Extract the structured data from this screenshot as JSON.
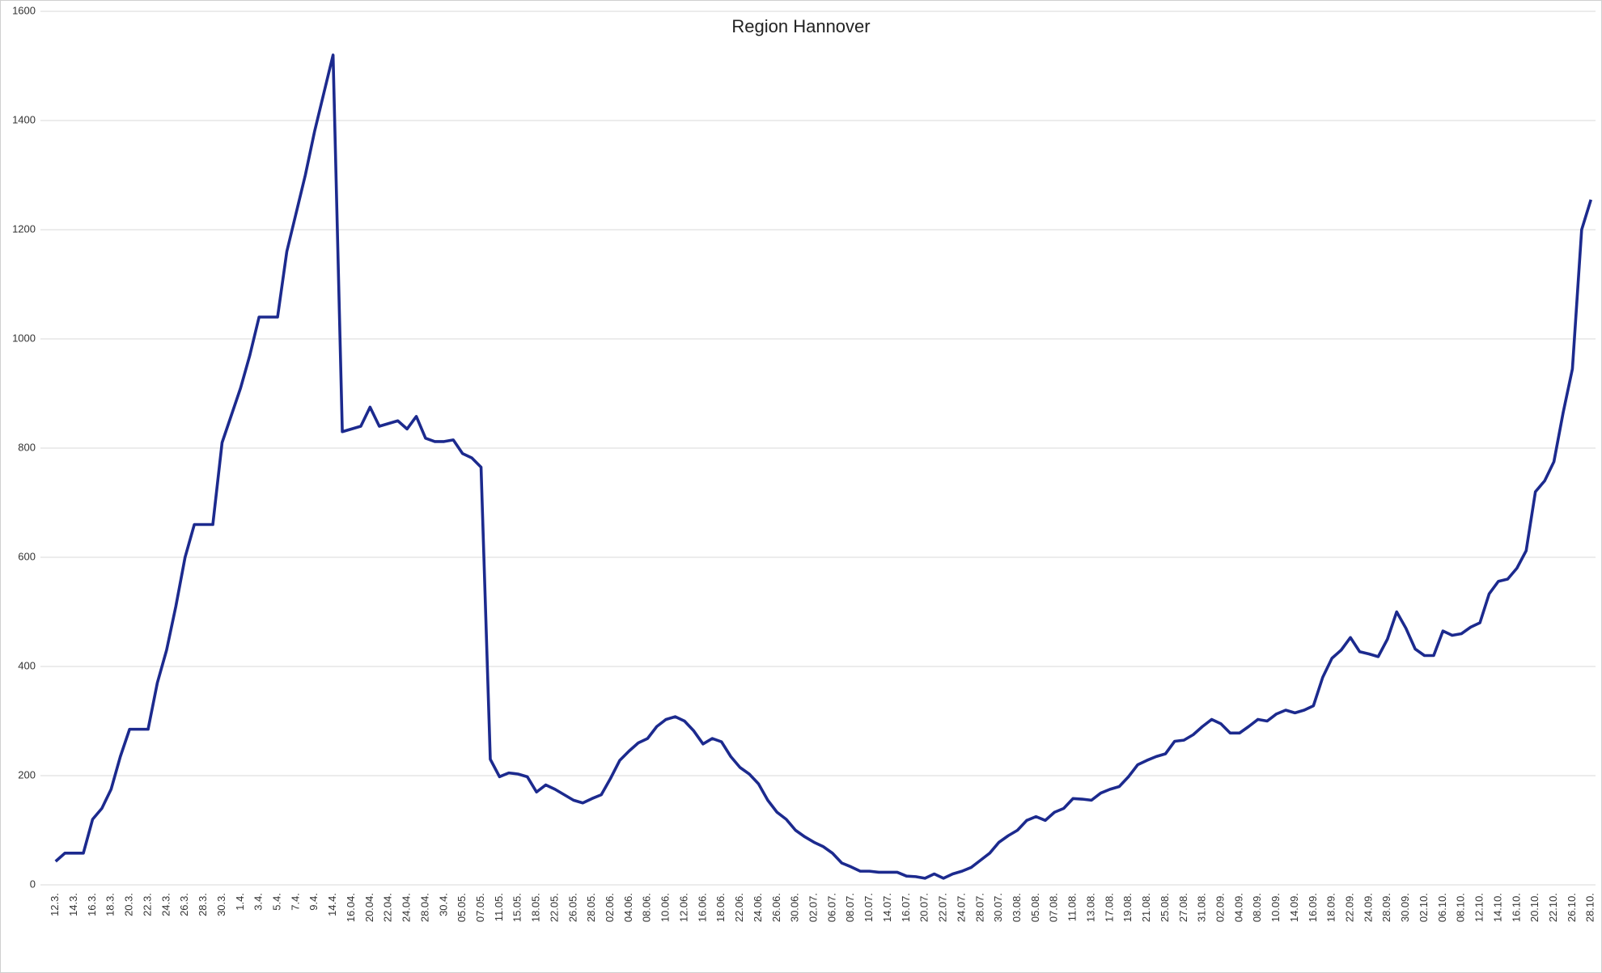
{
  "chart_data": {
    "type": "line",
    "title": "Region Hannover",
    "categories": [
      "12.3.",
      null,
      "14.3.",
      null,
      "16.3.",
      null,
      "18.3.",
      null,
      "20.3.",
      null,
      "22.3.",
      null,
      "24.3.",
      null,
      "26.3.",
      null,
      "28.3.",
      null,
      "30.3.",
      null,
      "1.4.",
      null,
      "3.4.",
      null,
      "5.4.",
      null,
      "7.4.",
      null,
      "9.4.",
      null,
      "14.4.",
      null,
      "16.04.",
      null,
      "20.04.",
      null,
      "22.04.",
      null,
      "24.04.",
      null,
      "28.04.",
      null,
      "30.4.",
      null,
      "05.05.",
      null,
      "07.05.",
      null,
      "11.05.",
      null,
      "15.05.",
      null,
      "18.05.",
      null,
      "22.05.",
      null,
      "26.05.",
      null,
      "28.05.",
      null,
      "02.06.",
      null,
      "04.06.",
      null,
      "08.06.",
      null,
      "10.06.",
      null,
      "12.06.",
      null,
      "16.06.",
      null,
      "18.06.",
      null,
      "22.06.",
      null,
      "24.06.",
      null,
      "26.06.",
      null,
      "30.06.",
      null,
      "02.07.",
      null,
      "06.07.",
      null,
      "08.07.",
      null,
      "10.07.",
      null,
      "14.07.",
      null,
      "16.07.",
      null,
      "20.07.",
      null,
      "22.07.",
      null,
      "24.07.",
      null,
      "28.07.",
      null,
      "30.07.",
      null,
      "03.08.",
      null,
      "05.08.",
      null,
      "07.08.",
      null,
      "11.08.",
      null,
      "13.08.",
      null,
      "17.08.",
      null,
      "19.08.",
      null,
      "21.08.",
      null,
      "25.08.",
      null,
      "27.08.",
      null,
      "31.08.",
      null,
      "02.09.",
      null,
      "04.09.",
      null,
      "08.09.",
      null,
      "10.09.",
      null,
      "14.09.",
      null,
      "16.09.",
      null,
      "18.09.",
      null,
      "22.09.",
      null,
      "24.09.",
      null,
      "28.09.",
      null,
      "30.09.",
      null,
      "02.10.",
      null,
      "06.10.",
      null,
      "08.10.",
      null,
      "12.10.",
      null,
      "14.10.",
      null,
      "16.10.",
      null,
      "20.10.",
      null,
      "22.10.",
      null,
      "26.10.",
      null,
      "28.10."
    ],
    "series": [
      {
        "name": "Region Hannover",
        "color": "#1c2a8e",
        "values": [
          43,
          58,
          58,
          58,
          120,
          140,
          175,
          235,
          285,
          285,
          285,
          370,
          430,
          510,
          600,
          660,
          660,
          660,
          810,
          860,
          910,
          970,
          1040,
          1040,
          1040,
          1160,
          1230,
          1300,
          1380,
          1450,
          1520,
          830,
          835,
          840,
          875,
          840,
          845,
          850,
          835,
          858,
          818,
          812,
          812,
          815,
          790,
          782,
          765,
          230,
          198,
          205,
          203,
          198,
          170,
          183,
          175,
          165,
          155,
          150,
          158,
          165,
          195,
          228,
          245,
          260,
          268,
          290,
          303,
          308,
          300,
          282,
          258,
          268,
          262,
          235,
          215,
          203,
          185,
          155,
          133,
          120,
          100,
          88,
          78,
          70,
          58,
          40,
          33,
          25,
          25,
          23,
          23,
          23,
          16,
          15,
          12,
          20,
          12,
          20,
          25,
          32,
          45,
          58,
          78,
          90,
          100,
          118,
          125,
          118,
          133,
          140,
          158,
          157,
          155,
          168,
          175,
          180,
          198,
          220,
          228,
          235,
          240,
          263,
          265,
          275,
          290,
          303,
          295,
          278,
          278,
          290,
          303,
          300,
          313,
          320,
          315,
          320,
          328,
          380,
          415,
          430,
          453,
          427,
          423,
          418,
          450,
          500,
          470,
          432,
          420,
          420,
          465,
          457,
          460,
          472,
          480,
          533,
          556,
          560,
          580,
          612,
          720,
          740,
          775,
          865,
          945,
          1200,
          1255
        ]
      }
    ],
    "ylim": [
      0,
      1600
    ],
    "yticks": [
      0,
      200,
      400,
      600,
      800,
      1000,
      1200,
      1400,
      1600
    ],
    "grid": true
  }
}
